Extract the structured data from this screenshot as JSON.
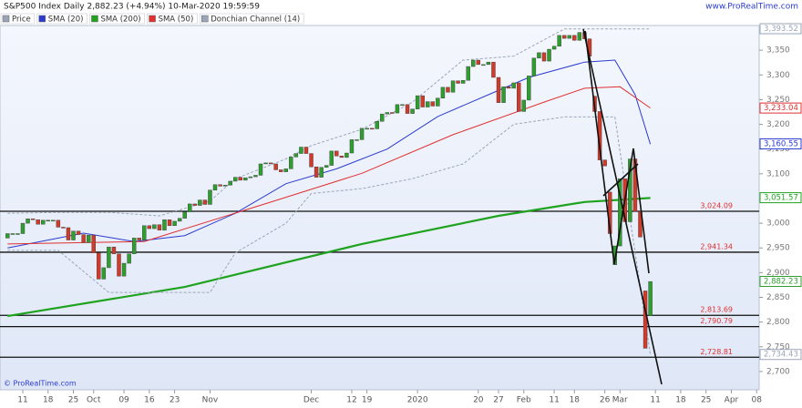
{
  "chart_data": {
    "type": "candlestick",
    "title": "S&P500 Index Daily 2,882.23 (+4.94%) 10-Mar-2020 19:59:59",
    "source": "www.ProRealTime.com",
    "copyright": "© ProRealTime.com",
    "price_name": "Price",
    "price_color": "#9aa3b8",
    "up_color": "#2e9e2e",
    "down_color": "#d23a2a",
    "xlim": [
      -1.5,
      148.5
    ],
    "xticks": [
      {
        "value": 3,
        "label": "11"
      },
      {
        "value": 8,
        "label": "18"
      },
      {
        "value": 13,
        "label": "25"
      },
      {
        "value": 17,
        "label": "Oct"
      },
      {
        "value": 23,
        "label": "09"
      },
      {
        "value": 28,
        "label": "16"
      },
      {
        "value": 33,
        "label": "23"
      },
      {
        "value": 40,
        "label": "Nov"
      },
      {
        "value": 60,
        "label": "Dec"
      },
      {
        "value": 68,
        "label": "12"
      },
      {
        "value": 71,
        "label": "19"
      },
      {
        "value": 81,
        "label": "2020"
      },
      {
        "value": 93,
        "label": "20"
      },
      {
        "value": 97,
        "label": "27"
      },
      {
        "value": 102,
        "label": "Feb"
      },
      {
        "value": 108,
        "label": "11"
      },
      {
        "value": 112,
        "label": "18"
      },
      {
        "value": 118,
        "label": "26"
      },
      {
        "value": 121,
        "label": "Mar"
      },
      {
        "value": 128,
        "label": "11"
      },
      {
        "value": 133,
        "label": "18"
      },
      {
        "value": 138,
        "label": "25"
      },
      {
        "value": 143,
        "label": "Apr"
      },
      {
        "value": 148,
        "label": "08"
      }
    ],
    "ylim": [
      2663,
      3400
    ],
    "yticks": [
      {
        "value": 2700,
        "label": "2,700"
      },
      {
        "value": 2750,
        "label": "2,750"
      },
      {
        "value": 2800,
        "label": "2,800"
      },
      {
        "value": 2850,
        "label": "2,850"
      },
      {
        "value": 2900,
        "label": "2,900"
      },
      {
        "value": 2950,
        "label": "2,950"
      },
      {
        "value": 3000,
        "label": "3,000"
      },
      {
        "value": 3050,
        "label": "3,050"
      },
      {
        "value": 3100,
        "label": "3,100"
      },
      {
        "value": 3150,
        "label": "3,150"
      },
      {
        "value": 3200,
        "label": "3,200"
      },
      {
        "value": 3250,
        "label": "3,250"
      },
      {
        "value": 3300,
        "label": "3,300"
      },
      {
        "value": 3350,
        "label": "3,350"
      }
    ],
    "candles": {
      "open": [
        2970,
        2979,
        2979,
        2979,
        3000,
        3009,
        3007,
        2998,
        3006,
        3006,
        3006,
        2992,
        2991,
        2966,
        2984,
        2977,
        2961,
        2976,
        2940,
        2887,
        2910,
        2952,
        2938,
        2893,
        2919,
        2938,
        2970,
        2966,
        2995,
        2989,
        2997,
        2986,
        3007,
        2995,
        3004,
        3010,
        3023,
        3039,
        3036,
        3047,
        3038,
        3067,
        3078,
        3075,
        3077,
        3085,
        3093,
        3087,
        3092,
        3094,
        3097,
        3120,
        3122,
        3120,
        3108,
        3104,
        3110,
        3134,
        3141,
        3154,
        3141,
        3114,
        3093,
        3113,
        3117,
        3146,
        3136,
        3133,
        3142,
        3169,
        3169,
        3192,
        3192,
        3191,
        3206,
        3221,
        3224,
        3223,
        3240,
        3240,
        3222,
        3231,
        3258,
        3235,
        3246,
        3237,
        3253,
        3275,
        3265,
        3288,
        3283,
        3289,
        3317,
        3330,
        3321,
        3321,
        3326,
        3295,
        3244,
        3276,
        3273,
        3284,
        3226,
        3249,
        3298,
        3334,
        3345,
        3328,
        3352,
        3358,
        3380,
        3374,
        3380,
        3370,
        3386,
        3373,
        3257,
        3226,
        3128,
        3063,
        2916,
        2954,
        3090,
        3003,
        3130,
        3024,
        2863,
        2813
      ],
      "close": [
        2979,
        2979,
        2979,
        3000,
        3009,
        3007,
        2998,
        3006,
        3006,
        3006,
        2992,
        2991,
        2966,
        2984,
        2977,
        2961,
        2976,
        2940,
        2887,
        2910,
        2952,
        2938,
        2893,
        2919,
        2938,
        2970,
        2966,
        2995,
        2989,
        2997,
        2986,
        3007,
        2995,
        3004,
        3010,
        3023,
        3039,
        3036,
        3047,
        3038,
        3067,
        3078,
        3075,
        3077,
        3085,
        3093,
        3087,
        3092,
        3094,
        3097,
        3120,
        3122,
        3120,
        3108,
        3104,
        3110,
        3134,
        3141,
        3154,
        3141,
        3114,
        3093,
        3113,
        3117,
        3146,
        3136,
        3133,
        3142,
        3169,
        3169,
        3192,
        3192,
        3191,
        3206,
        3221,
        3224,
        3223,
        3240,
        3240,
        3222,
        3231,
        3258,
        3235,
        3246,
        3237,
        3253,
        3275,
        3265,
        3288,
        3283,
        3289,
        3317,
        3330,
        3321,
        3321,
        3326,
        3295,
        3244,
        3276,
        3273,
        3284,
        3226,
        3249,
        3298,
        3334,
        3345,
        3328,
        3352,
        3358,
        3380,
        3374,
        3380,
        3370,
        3386,
        3373,
        3338,
        3226,
        3128,
        3116,
        2979,
        2954,
        3090,
        3003,
        3130,
        3024,
        2972,
        2747,
        2882
      ]
    },
    "series": [
      {
        "name": "SMA (20)",
        "color": "#2b3bd0",
        "width": 1,
        "x": [
          0,
          15,
          25,
          35,
          45,
          55,
          65,
          75,
          85,
          95,
          103,
          114,
          120,
          124,
          127
        ],
        "values": [
          2950,
          2980,
          2963,
          2975,
          3020,
          3080,
          3110,
          3150,
          3216,
          3260,
          3295,
          3326,
          3330,
          3260,
          3160
        ]
      },
      {
        "name": "SMA (200)",
        "color": "#1fa31f",
        "width": 2.2,
        "x": [
          0,
          35,
          70,
          97,
          114,
          127
        ],
        "values": [
          2812,
          2871,
          2958,
          3015,
          3043,
          3051
        ]
      },
      {
        "name": "SMA (50)",
        "color": "#e03030",
        "width": 1,
        "x": [
          0,
          27,
          53,
          70,
          88,
          106,
          114,
          121,
          127
        ],
        "values": [
          2958,
          2963,
          3046,
          3101,
          3179,
          3245,
          3273,
          3276,
          3233
        ]
      },
      {
        "name": "Donchian Channel (14)",
        "color": "#9aa6b8",
        "dashed": true,
        "x": [
          0,
          10,
          20,
          30,
          40,
          45,
          55,
          60,
          70,
          80,
          90,
          100,
          110,
          120,
          127
        ],
        "upper": [
          3020,
          3022,
          3022,
          3015,
          3045,
          3090,
          3130,
          3157,
          3190,
          3245,
          3330,
          3338,
          3393,
          3393,
          3393
        ],
        "lower": [
          2945,
          2945,
          2860,
          2860,
          2860,
          2940,
          3000,
          3060,
          3070,
          3090,
          3120,
          3200,
          3215,
          3215,
          2734
        ]
      }
    ],
    "price_labels": [
      {
        "value": 3393.52,
        "label": "3,393.52",
        "color": "#9aa6b8"
      },
      {
        "value": 3233.04,
        "label": "3,233.04",
        "color": "#e03030"
      },
      {
        "value": 3160.55,
        "label": "3,160.55",
        "color": "#2b3bd0"
      },
      {
        "value": 3051.57,
        "label": "3,051.57",
        "color": "#1fa31f"
      },
      {
        "value": 2882.23,
        "label": "2,882.23",
        "color": "#2e9e2e"
      },
      {
        "value": 2734.43,
        "label": "2,734.43",
        "color": "#9aa6b8"
      }
    ],
    "levels": [
      {
        "value": 3024.09,
        "label": "3,024.09"
      },
      {
        "value": 2941.34,
        "label": "2,941.34"
      },
      {
        "value": 2813.69,
        "label": "2,813.69"
      },
      {
        "value": 2790.79,
        "label": "2,790.79"
      },
      {
        "value": 2728.81,
        "label": "2,728.81"
      }
    ]
  }
}
